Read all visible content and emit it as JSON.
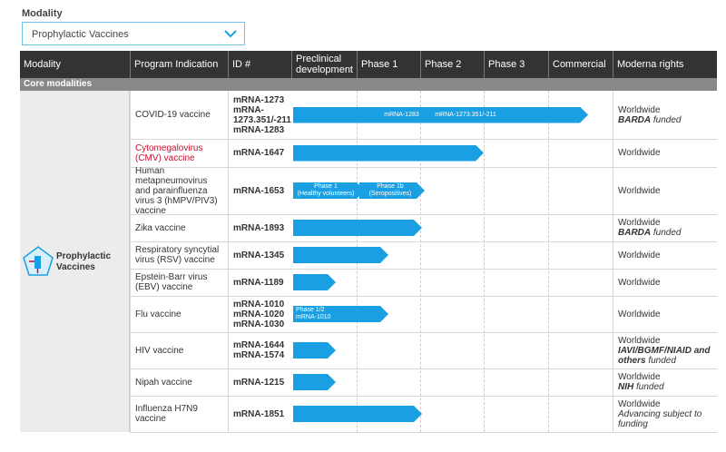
{
  "filter": {
    "label": "Modality",
    "selected": "Prophylactic Vaccines"
  },
  "table": {
    "headers": [
      "Modality",
      "Program Indication",
      "ID #",
      "Preclinical development",
      "Phase 1",
      "Phase 2",
      "Phase 3",
      "Commercial",
      "Moderna rights"
    ],
    "section": "Core modalities",
    "group": "Prophylactic Vaccines",
    "rows": [
      {
        "indication": "COVID-19 vaccine",
        "ids": [
          "mRNA-1273",
          "mRNA-1273.351/-211",
          "mRNA-1283"
        ],
        "bar_labels": [
          [
            "mRNA-1283"
          ],
          [
            "mRNA-1273.351/-211"
          ]
        ],
        "rights": "Worldwide",
        "funder": "BARDA",
        "note": "funded"
      },
      {
        "indication": "Cytomegalovirus (CMV) vaccine",
        "ids": [
          "mRNA-1647"
        ],
        "rights": "Worldwide"
      },
      {
        "indication": "Human metapneumovirus and parainfluenza virus 3 (hMPV/PIV3) vaccine",
        "ids": [
          "mRNA-1653"
        ],
        "bar_labels": [
          [
            "Phase 1",
            "(Healthy volunteers)"
          ],
          [
            "Phase 1b",
            "(Seropositives)"
          ]
        ],
        "rights": "Worldwide"
      },
      {
        "indication": "Zika vaccine",
        "ids": [
          "mRNA-1893"
        ],
        "rights": "Worldwide",
        "funder": "BARDA",
        "note": "funded"
      },
      {
        "indication": "Respiratory syncytial virus (RSV) vaccine",
        "ids": [
          "mRNA-1345"
        ],
        "rights": "Worldwide"
      },
      {
        "indication": "Epstein-Barr virus (EBV) vaccine",
        "ids": [
          "mRNA-1189"
        ],
        "rights": "Worldwide"
      },
      {
        "indication": "Flu vaccine",
        "ids": [
          "mRNA-1010",
          "mRNA-1020",
          "mRNA-1030"
        ],
        "bar_labels": [
          [
            "Phase 1/2",
            "mRNA-1010"
          ]
        ],
        "rights": "Worldwide"
      },
      {
        "indication": "HIV vaccine",
        "ids": [
          "mRNA-1644",
          "mRNA-1574"
        ],
        "rights": "Worldwide",
        "funder": "IAVI/BGMF/NIAID and others",
        "note": "funded"
      },
      {
        "indication": "Nipah vaccine",
        "ids": [
          "mRNA-1215"
        ],
        "rights": "Worldwide",
        "funder": "NIH",
        "note": "funded"
      },
      {
        "indication": "Influenza H7N9 vaccine",
        "ids": [
          "mRNA-1851"
        ],
        "rights": "Worldwide",
        "note": "Advancing subject to funding"
      }
    ]
  }
}
